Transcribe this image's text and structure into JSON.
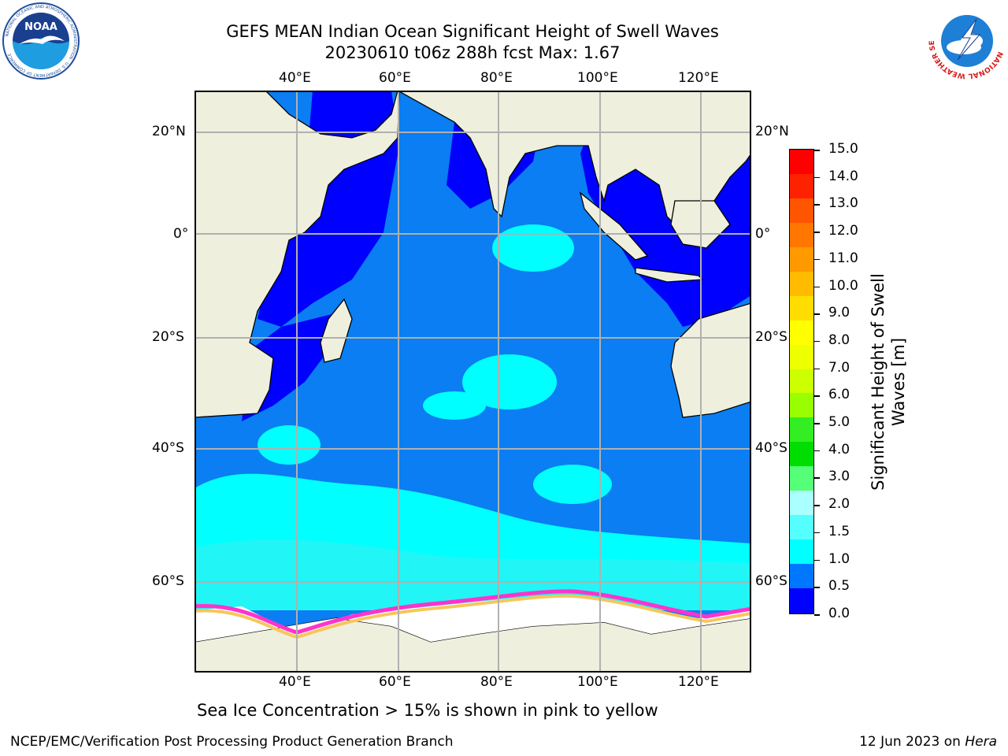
{
  "header": {
    "title_line1": "GEFS MEAN Indian Ocean Significant Height of Swell Waves",
    "title_line2": "20230610 t06z 288h fcst   Max: 1.67"
  },
  "logos": {
    "noaa_text": "NOAA",
    "noaa_ring": "NATIONAL OCEANIC AND ATMOSPHERIC ADMINISTRATION · U.S. DEPARTMENT OF COMMERCE",
    "nws_ring": "NATIONAL WEATHER SERVICE"
  },
  "map": {
    "lon_labels": [
      "40°E",
      "60°E",
      "80°E",
      "100°E",
      "120°E"
    ],
    "lat_labels": [
      "20°N",
      "0°",
      "20°S",
      "40°S",
      "60°S"
    ],
    "colors": {
      "land": "#efefde",
      "sea_ice": "#ffffff",
      "grid": "#b0b0b0",
      "ice_pink": "#ff33cc",
      "ice_yellow": "#f7c65a"
    }
  },
  "colorbar": {
    "title": "Significant Height of Swell Waves [m]",
    "ticks": [
      "15.0",
      "14.0",
      "13.0",
      "12.0",
      "11.0",
      "10.0",
      "9.0",
      "8.0",
      "7.0",
      "6.0",
      "5.0",
      "4.0",
      "3.0",
      "2.0",
      "1.5",
      "1.0",
      "0.5",
      "0.0"
    ],
    "colors_top_to_bottom": [
      "#ff0000",
      "#ff2200",
      "#ff5500",
      "#ff7700",
      "#ff9900",
      "#ffbb00",
      "#ffdd00",
      "#ffff00",
      "#eeff00",
      "#ccff00",
      "#99ff00",
      "#33ee22",
      "#00dd00",
      "#55ff77",
      "#aaffff",
      "#55ffff",
      "#00ffff",
      "#0077ff",
      "#0000ff"
    ]
  },
  "caption": "Sea Ice Concentration > 15% is shown in pink to yellow",
  "footer": {
    "left": "NCEP/EMC/Verification Post Processing Product Generation Branch",
    "date": "12 Jun 2023 on ",
    "host": "Hera"
  }
}
